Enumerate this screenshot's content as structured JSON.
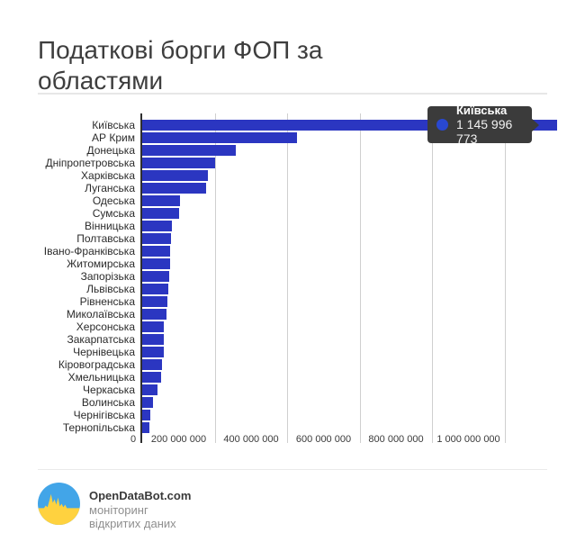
{
  "title": "Податкові борги ФОП за областями",
  "colors": {
    "bar": "#2b36c1",
    "tooltip_bg": "#3b3b3b",
    "tooltip_dot": "#2948d1",
    "grid": "#cfcfcf",
    "axis": "#2f2f2f",
    "logo_blue": "#42a5e8",
    "logo_yellow": "#ffd23f"
  },
  "chart_data": {
    "type": "bar",
    "orientation": "horizontal",
    "title": "Податкові борги ФОП за областями",
    "grid": true,
    "xlim": [
      0,
      1165000000
    ],
    "categories": [
      "Київська",
      "АР Крим",
      "Донецька",
      "Дніпропетровська",
      "Харківська",
      "Луганська",
      "Одеська",
      "Сумська",
      "Вінницька",
      "Полтавська",
      "Івано-Франківська",
      "Житомирська",
      "Запорізька",
      "Львівська",
      "Рівненська",
      "Миколаївська",
      "Херсонська",
      "Закарпатська",
      "Чернівецька",
      "Кіровоградська",
      "Хмельницька",
      "Черкаська",
      "Волинська",
      "Чернігівська",
      "Тернопільська"
    ],
    "values": [
      1145996773,
      428000000,
      259000000,
      201000000,
      182000000,
      177000000,
      103000000,
      101000000,
      81000000,
      78500000,
      77000000,
      76000000,
      73500000,
      72000000,
      70000000,
      66000000,
      60000000,
      59500000,
      59000000,
      55000000,
      51000000,
      41000000,
      30000000,
      22500000,
      20000000
    ],
    "x_ticks": [
      {
        "value": 0,
        "label": "0"
      },
      {
        "value": 200000000,
        "label": "200 000 000"
      },
      {
        "value": 400000000,
        "label": "400 000 000"
      },
      {
        "value": 600000000,
        "label": "600 000 000"
      },
      {
        "value": 800000000,
        "label": "800 000 000"
      },
      {
        "value": 1000000000,
        "label": "1 000 000 000"
      }
    ]
  },
  "tooltip": {
    "region": "Київська",
    "value": "1 145 996 773"
  },
  "footer": {
    "brand": "OpenDataBot.com",
    "tagline": "моніторинг відкритих даних"
  }
}
